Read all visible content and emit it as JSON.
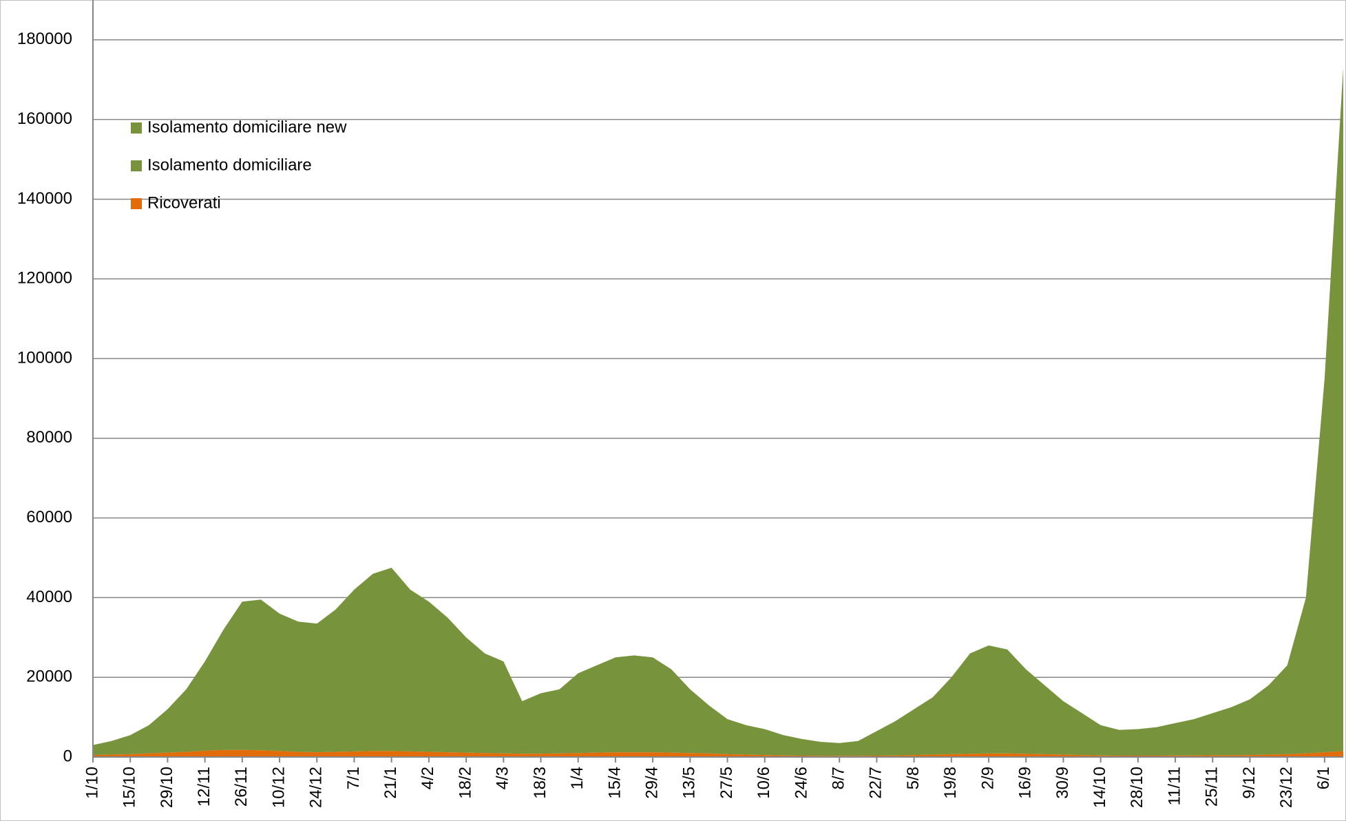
{
  "chart_data": {
    "type": "stacked_area",
    "categories": [
      "1/10",
      null,
      "15/10",
      null,
      "29/10",
      null,
      "12/11",
      null,
      "26/11",
      null,
      "10/12",
      null,
      "24/12",
      null,
      "7/1",
      null,
      "21/1",
      null,
      "4/2",
      null,
      "18/2",
      null,
      "4/3",
      null,
      "18/3",
      null,
      "1/4",
      null,
      "15/4",
      null,
      "29/4",
      null,
      "13/5",
      null,
      "27/5",
      null,
      "10/6",
      null,
      "24/6",
      null,
      "8/7",
      null,
      "22/7",
      null,
      "5/8",
      null,
      "19/8",
      null,
      "2/9",
      null,
      "16/9",
      null,
      "30/9",
      null,
      "14/10",
      null,
      "28/10",
      null,
      "11/11",
      null,
      "25/11",
      null,
      "9/12",
      null,
      "23/12",
      null,
      "6/1",
      null
    ],
    "series": [
      {
        "name": "Ricoverati",
        "color": "#e36c0a",
        "values": [
          500,
          600,
          700,
          900,
          1100,
          1300,
          1600,
          1750,
          1800,
          1700,
          1500,
          1300,
          1200,
          1300,
          1400,
          1500,
          1500,
          1400,
          1300,
          1200,
          1100,
          1000,
          900,
          850,
          850,
          900,
          1000,
          1100,
          1200,
          1200,
          1200,
          1100,
          1000,
          900,
          700,
          600,
          500,
          400,
          350,
          300,
          300,
          300,
          350,
          400,
          500,
          600,
          700,
          800,
          900,
          900,
          800,
          700,
          600,
          500,
          400,
          350,
          350,
          350,
          400,
          400,
          450,
          450,
          500,
          600,
          700,
          900,
          1200,
          1500
        ]
      },
      {
        "name": "Isolamento domiciliare",
        "color": "#77933c",
        "values": [
          2500,
          3400,
          4800,
          7100,
          10900,
          15700,
          22400,
          30250,
          37200,
          37800,
          34500,
          32700,
          32300,
          35700,
          40600,
          44500,
          46000,
          40600,
          37700,
          33800,
          28900,
          25000,
          23100,
          13150,
          15150,
          16100,
          20000,
          21900,
          23800,
          24300,
          23800,
          20900,
          16000,
          12100,
          8800,
          7400,
          6500,
          5100,
          4150,
          3500,
          3200,
          3700,
          6150,
          8600,
          11500,
          14400,
          19300,
          25200,
          27100,
          26100,
          21200,
          17300,
          13400,
          10500,
          7600,
          6450,
          6650,
          7150,
          8100,
          9100,
          10550,
          12050,
          14000,
          17400,
          22300,
          39100,
          93800,
          171500
        ]
      },
      {
        "name": "Isolamento domiciliare new",
        "color": "#77933c",
        "values": [
          null,
          null,
          null,
          null,
          null,
          null,
          null,
          null,
          null,
          null,
          null,
          null,
          null,
          null,
          null,
          null,
          null,
          null,
          null,
          null,
          null,
          null,
          null,
          null,
          null,
          null,
          null,
          null,
          null,
          null,
          null,
          null,
          null,
          null,
          null,
          null,
          null,
          null,
          null,
          null,
          null,
          null,
          null,
          null,
          null,
          null,
          null,
          null,
          null,
          null,
          null,
          null,
          null,
          null,
          null,
          null,
          null,
          null,
          null,
          null,
          null,
          null,
          null,
          null,
          null,
          null,
          null,
          null
        ]
      }
    ],
    "ylim": [
      0,
      190000
    ],
    "yticks": [
      0,
      20000,
      40000,
      60000,
      80000,
      100000,
      120000,
      140000,
      160000,
      180000
    ],
    "grid": true,
    "legend": "upper left"
  }
}
